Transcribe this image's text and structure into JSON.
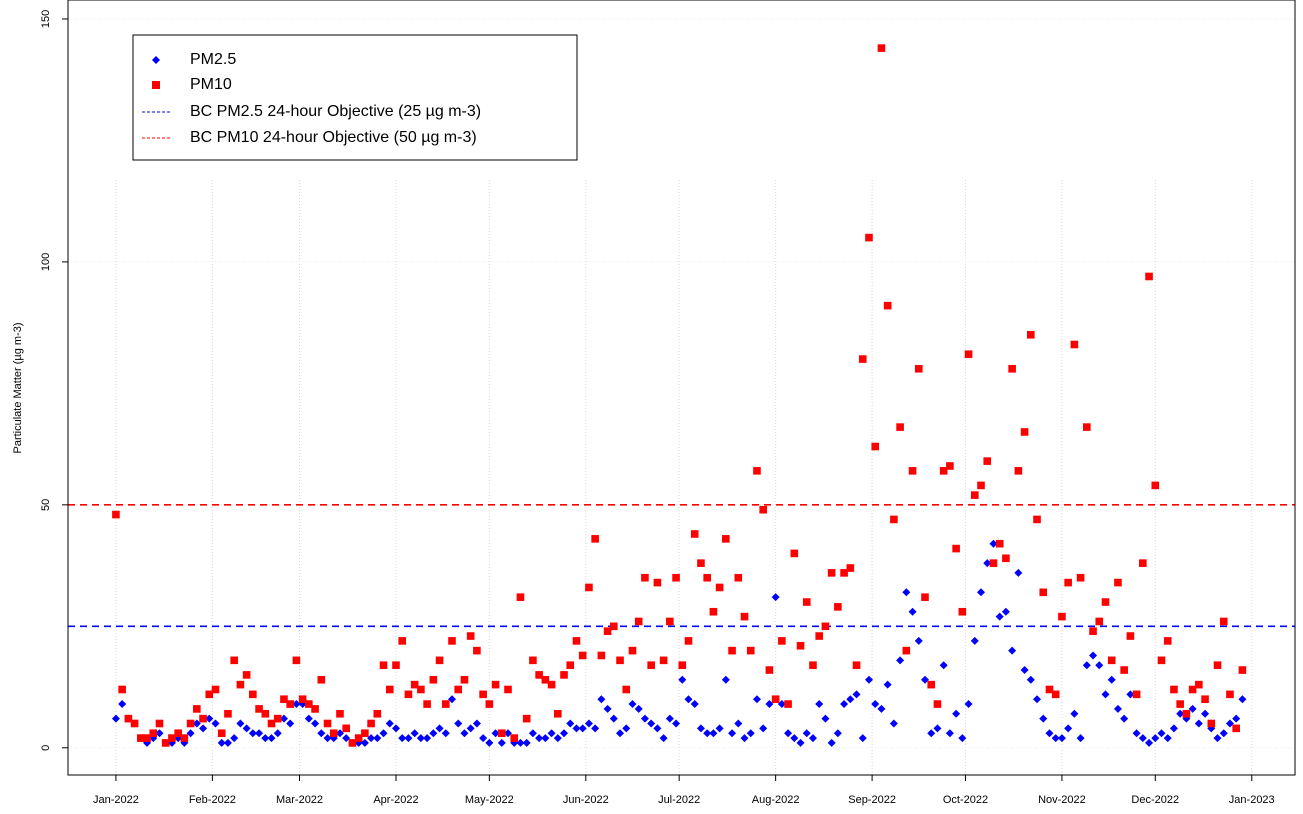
{
  "chart_data": {
    "type": "scatter",
    "y_label": "Particulate Matter (µg m-3)",
    "x": [
      0,
      2,
      4,
      6,
      8,
      10,
      12,
      14,
      16,
      18,
      20,
      22,
      24,
      26,
      28,
      30,
      32,
      34,
      36,
      38,
      40,
      42,
      44,
      46,
      48,
      50,
      52,
      54,
      56,
      58,
      60,
      62,
      64,
      66,
      68,
      70,
      72,
      74,
      76,
      78,
      80,
      82,
      84,
      86,
      88,
      90,
      92,
      94,
      96,
      98,
      100,
      102,
      104,
      106,
      108,
      110,
      112,
      114,
      116,
      118,
      120,
      122,
      124,
      126,
      128,
      130,
      132,
      134,
      136,
      138,
      140,
      142,
      144,
      146,
      148,
      150,
      152,
      154,
      156,
      158,
      160,
      162,
      164,
      166,
      168,
      170,
      172,
      174,
      176,
      178,
      180,
      182,
      184,
      186,
      188,
      190,
      192,
      194,
      196,
      198,
      200,
      202,
      204,
      206,
      208,
      210,
      212,
      214,
      216,
      218,
      220,
      222,
      224,
      226,
      228,
      230,
      232,
      234,
      236,
      238,
      240,
      242,
      244,
      246,
      248,
      250,
      252,
      254,
      256,
      258,
      260,
      262,
      264,
      266,
      268,
      270,
      272,
      274,
      276,
      278,
      280,
      282,
      284,
      286,
      288,
      290,
      292,
      294,
      296,
      298,
      300,
      302,
      304,
      306,
      308,
      310,
      312,
      314,
      316,
      318,
      320,
      322,
      324,
      326,
      328,
      330,
      332,
      334,
      336,
      338,
      340,
      342,
      344,
      346,
      348,
      350,
      352,
      354,
      356,
      358,
      360,
      362
    ],
    "series": [
      {
        "name": "PM2.5",
        "color": "#0000ff",
        "marker": "diamond",
        "values": [
          6,
          9,
          6,
          5,
          2,
          1,
          2,
          3,
          1,
          1,
          2,
          1,
          3,
          5,
          4,
          6,
          5,
          1,
          1,
          2,
          5,
          4,
          3,
          3,
          2,
          2,
          3,
          6,
          5,
          9,
          9,
          6,
          5,
          3,
          2,
          2,
          3,
          2,
          1,
          1,
          1,
          2,
          2,
          3,
          5,
          4,
          2,
          2,
          3,
          2,
          2,
          3,
          4,
          3,
          10,
          5,
          3,
          4,
          5,
          2,
          1,
          3,
          1,
          3,
          1,
          1,
          1,
          3,
          2,
          2,
          3,
          2,
          3,
          5,
          4,
          4,
          5,
          4,
          10,
          8,
          6,
          3,
          4,
          9,
          8,
          6,
          5,
          4,
          2,
          6,
          5,
          14,
          10,
          9,
          4,
          3,
          3,
          4,
          14,
          3,
          5,
          2,
          3,
          10,
          4,
          9,
          31,
          9,
          3,
          2,
          1,
          3,
          2,
          9,
          6,
          1,
          3,
          9,
          10,
          11,
          2,
          14,
          9,
          8,
          13,
          5,
          18,
          32,
          28,
          22,
          14,
          3,
          4,
          17,
          3,
          7,
          2,
          9,
          22,
          32,
          38,
          42,
          27,
          28,
          20,
          36,
          16,
          14,
          10,
          6,
          3,
          2,
          2,
          4,
          7,
          2,
          17,
          19,
          17,
          11,
          14,
          8,
          6,
          11,
          3,
          2,
          1,
          2,
          3,
          2,
          4,
          7,
          6,
          8,
          5,
          7,
          4,
          2,
          3,
          5,
          6,
          10
        ]
      },
      {
        "name": "PM10",
        "color": "#ff0000",
        "marker": "square",
        "values": [
          48,
          12,
          6,
          5,
          2,
          2,
          3,
          5,
          1,
          2,
          3,
          2,
          5,
          8,
          6,
          11,
          12,
          3,
          7,
          18,
          13,
          15,
          11,
          8,
          7,
          5,
          6,
          10,
          9,
          18,
          10,
          9,
          8,
          14,
          5,
          3,
          7,
          4,
          1,
          2,
          3,
          5,
          7,
          17,
          12,
          17,
          22,
          11,
          13,
          12,
          9,
          14,
          18,
          9,
          22,
          12,
          14,
          23,
          20,
          11,
          9,
          13,
          3,
          12,
          2,
          31,
          6,
          18,
          15,
          14,
          13,
          7,
          15,
          17,
          22,
          19,
          33,
          43,
          19,
          24,
          25,
          18,
          12,
          20,
          26,
          35,
          17,
          34,
          18,
          26,
          35,
          17,
          22,
          44,
          38,
          35,
          28,
          33,
          43,
          20,
          35,
          27,
          20,
          57,
          49,
          16,
          10,
          22,
          9,
          40,
          21,
          30,
          17,
          23,
          25,
          36,
          29,
          36,
          37,
          17,
          80,
          105,
          62,
          144,
          91,
          47,
          66,
          20,
          57,
          78,
          31,
          13,
          9,
          57,
          58,
          41,
          28,
          81,
          52,
          54,
          59,
          38,
          42,
          39,
          78,
          57,
          65,
          85,
          47,
          32,
          12,
          11,
          27,
          34,
          83,
          35,
          66,
          24,
          26,
          30,
          18,
          34,
          16,
          23,
          11,
          38,
          97,
          54,
          18,
          22,
          12,
          9,
          7,
          12,
          13,
          10,
          5,
          17,
          26,
          11,
          4,
          16
        ]
      }
    ],
    "hlines": [
      {
        "value": 25,
        "color": "#0000ff",
        "label": "BC PM2.5 24-hour Objective (25 µg m-3)"
      },
      {
        "value": 50,
        "color": "#ff0000",
        "label": "BC PM10 24-hour Objective (50 µg m-3)"
      }
    ],
    "xlim": [
      -15.4,
      378.9
    ],
    "xticks": [
      {
        "value": 0,
        "label": "Jan-2022"
      },
      {
        "value": 31,
        "label": "Feb-2022"
      },
      {
        "value": 59,
        "label": "Mar-2022"
      },
      {
        "value": 90,
        "label": "Apr-2022"
      },
      {
        "value": 120,
        "label": "May-2022"
      },
      {
        "value": 151,
        "label": "Jun-2022"
      },
      {
        "value": 181,
        "label": "Jul-2022"
      },
      {
        "value": 212,
        "label": "Aug-2022"
      },
      {
        "value": 243,
        "label": "Sep-2022"
      },
      {
        "value": 273,
        "label": "Oct-2022"
      },
      {
        "value": 304,
        "label": "Nov-2022"
      },
      {
        "value": 334,
        "label": "Dec-2022"
      },
      {
        "value": 365,
        "label": "Jan-2023"
      }
    ],
    "ylim": [
      -5.6,
      153.9
    ],
    "yticks": [
      0,
      50,
      100,
      150
    ],
    "grid": true,
    "legend": "top-left"
  }
}
